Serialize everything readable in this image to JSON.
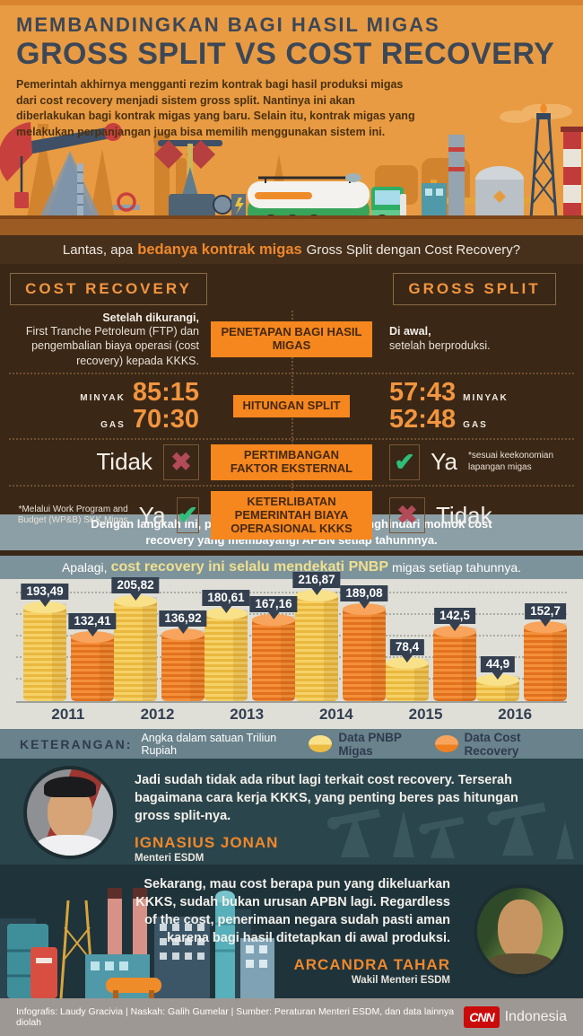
{
  "header": {
    "kicker": "MEMBANDINGKAN BAGI HASIL MIGAS",
    "title": "GROSS SPLIT VS COST RECOVERY",
    "intro": "Pemerintah akhirnya mengganti rezim kontrak bagi hasil produksi migas dari cost recovery menjadi sistem gross split. Nantinya ini akan diberlakukan bagi kontrak migas yang baru. Selain itu, kontrak migas yang melakukan perpanjangan juga bisa memilih menggunakan sistem ini."
  },
  "comparison": {
    "question_prefix": "Lantas, apa ",
    "question_highlight": "bedanya kontrak migas",
    "question_suffix": " Gross Split dengan Cost Recovery?",
    "left_header": "COST RECOVERY",
    "right_header": "GROSS SPLIT",
    "rows": [
      {
        "center": "PENETAPAN BAGI HASIL MIGAS",
        "left_lead": "Setelah dikurangi,",
        "left_text": "First Tranche Petroleum (FTP) dan pengembalian biaya operasi (cost recovery) kepada KKKS.",
        "right_lead": "Di awal,",
        "right_text": "setelah berproduksi."
      },
      {
        "center": "HITUNGAN SPLIT",
        "left_rows": [
          {
            "label": "MINYAK",
            "value": "85:15"
          },
          {
            "label": "GAS",
            "value": "70:30"
          }
        ],
        "right_rows": [
          {
            "label": "MINYAK",
            "value": "57:43"
          },
          {
            "label": "GAS",
            "value": "52:48"
          }
        ]
      },
      {
        "center": "PERTIMBANGAN FAKTOR EKSTERNAL",
        "left_answer": "Tidak",
        "left_mark": "✖",
        "right_answer": "Ya",
        "right_mark": "✔",
        "right_note": "*sesuai keekonomian lapangan migas"
      },
      {
        "center": "KETERLIBATAN PEMERINTAH BIAYA OPERASIONAL KKKS",
        "left_answer": "Ya",
        "left_mark": "✔",
        "left_note": "*Melalui Work Program and Budget (WP&B) SKK Migas",
        "right_answer": "Tidak",
        "right_mark": "✖"
      }
    ]
  },
  "note_text": "Dengan langkah ini, pemerintah berharap bisa menghindari momok cost recovery yang membayangi APBN setiap tahunnnya.",
  "chart_headline": {
    "prefix": "Apalagi, ",
    "highlight": "cost recovery ini selalu mendekati PNBP",
    "suffix": " migas setiap tahunnya."
  },
  "chart_data": {
    "type": "bar",
    "categories": [
      "2011",
      "2012",
      "2013",
      "2014",
      "2015",
      "2016"
    ],
    "series": [
      {
        "name": "Data PNBP Migas",
        "color": "#f2cb4e",
        "values": [
          193.49,
          205.82,
          180.61,
          216.87,
          78.4,
          44.9
        ],
        "labels": [
          "193,49",
          "205,82",
          "180,61",
          "216,87",
          "78,4",
          "44,9"
        ]
      },
      {
        "name": "Data Cost Recovery",
        "color": "#f08226",
        "values": [
          132.41,
          136.92,
          167.16,
          189.08,
          142.5,
          152.7
        ],
        "labels": [
          "132,41",
          "136,92",
          "167,16",
          "189,08",
          "142,5",
          "152,7"
        ]
      }
    ],
    "title": "Apalagi, cost recovery ini selalu mendekati PNBP migas setiap tahunnya.",
    "xlabel": "",
    "ylabel": "Triliun Rupiah",
    "ylim": [
      0,
      235
    ],
    "grid": true,
    "legend_position": "bottom",
    "unit_note": "Angka dalam satuan Triliun Rupiah"
  },
  "legend": {
    "title": "KETERANGAN:",
    "unit": "Angka dalam satuan Triliun Rupiah"
  },
  "quotes": [
    {
      "text": "Jadi sudah tidak ada ribut lagi terkait cost recovery. Terserah bagaimana cara kerja KKKS, yang penting beres pas hitungan gross split-nya.",
      "name": "IGNASIUS JONAN",
      "role": "Menteri ESDM"
    },
    {
      "text": "Sekarang, mau cost berapa pun yang dikeluarkan KKKS, sudah bukan urusan APBN lagi. Regardless of the cost, penerimaan negara sudah pasti aman karena bagi hasil ditetapkan di awal produksi.",
      "name": "ARCANDRA TAHAR",
      "role": "Wakil Menteri ESDM"
    }
  ],
  "footer": {
    "credits": "Infografis: Laudy Gracivia | Naskah: Galih Gumelar | Sumber: Peraturan Menteri ESDM, dan data lainnya diolah",
    "brand": "CNN",
    "brand_suffix": "Indonesia"
  },
  "colors": {
    "hero_bg": "#e89b42",
    "section_brown": "#3a2716",
    "accent_orange": "#f0882b",
    "box_orange": "#f5871e",
    "navy": "#333f51",
    "note_bar": "#8c9fa6",
    "chart_bg": "#dfdfd8",
    "legend_bar": "#69828b",
    "quote1_bg": "#2b454c",
    "quote2_bg": "#1f333b",
    "footer_bg": "#9e9894",
    "check_green": "#2fbe79",
    "cross_red": "#b34a57",
    "cnn_red": "#cb0a0a"
  }
}
